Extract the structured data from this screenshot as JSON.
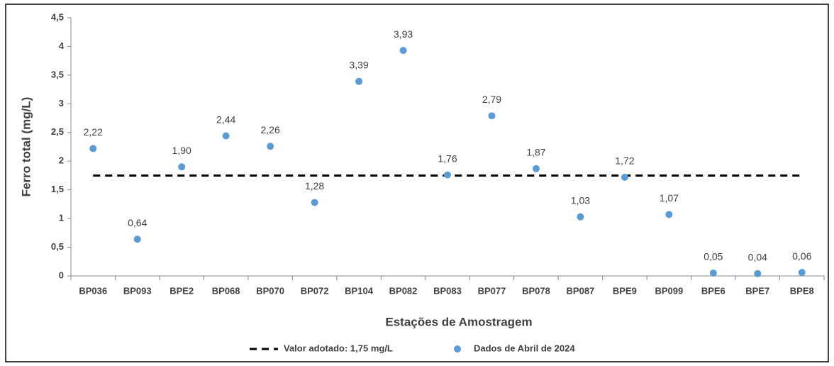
{
  "chart_data": {
    "type": "scatter",
    "y_label": "Ferro total (mg/L)",
    "x_label": "Estações de Amostragem",
    "categories": [
      "BP036",
      "BP093",
      "BPE2",
      "BP068",
      "BP070",
      "BP072",
      "BP104",
      "BP082",
      "BP083",
      "BP077",
      "BP078",
      "BP087",
      "BPE9",
      "BP099",
      "BPE6",
      "BPE7",
      "BPE8"
    ],
    "series": [
      {
        "name": "Dados de Abril de 2024",
        "color": "#5b9bd5",
        "values": [
          2.22,
          0.64,
          1.9,
          2.44,
          2.26,
          1.28,
          3.39,
          3.93,
          1.76,
          2.79,
          1.87,
          1.03,
          1.72,
          1.07,
          0.05,
          0.04,
          0.06
        ],
        "value_labels": [
          "2,22",
          "0,64",
          "1,90",
          "2,44",
          "2,26",
          "1,28",
          "3,39",
          "3,93",
          "1,76",
          "2,79",
          "1,87",
          "1,03",
          "1,72",
          "1,07",
          "0,05",
          "0,04",
          "0,06"
        ]
      }
    ],
    "reference_line": {
      "name": "Valor adotado: 1,75 mg/L",
      "value": 1.75,
      "color": "#000000"
    },
    "ylim": [
      0,
      4.5
    ],
    "yticks": [
      0,
      {
        "value": 0.5,
        "label": "0,5"
      },
      1,
      {
        "value": 1.5,
        "label": "1,5"
      },
      2,
      {
        "value": 2.5,
        "label": "2,5"
      },
      3,
      {
        "value": 3.5,
        "label": "3,5"
      },
      4,
      {
        "value": 4.5,
        "label": "4,5"
      }
    ],
    "legend": "bottom"
  }
}
